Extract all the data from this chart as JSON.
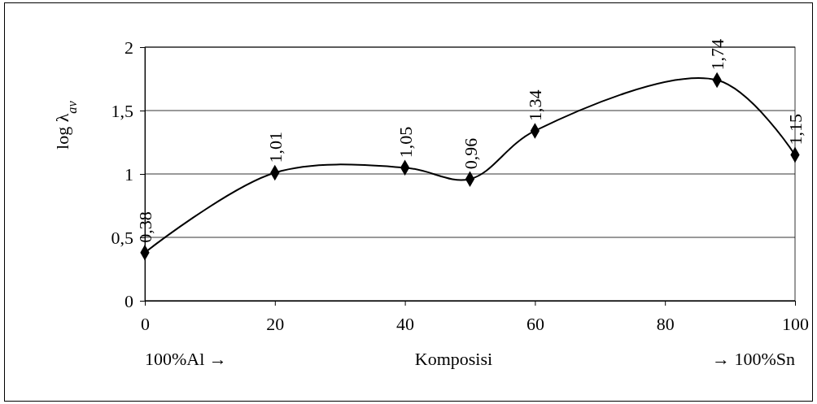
{
  "chart_data": {
    "type": "line",
    "xlabel": "Komposisi",
    "ylabel": "log λ$_{av}$",
    "x": [
      0,
      20,
      40,
      50,
      60,
      88,
      100
    ],
    "series": [
      {
        "color": "#000000",
        "values": [
          0.38,
          1.01,
          1.05,
          0.96,
          1.34,
          1.74,
          1.15
        ],
        "value_labels": [
          "0,38",
          "1,01",
          "1,05",
          "0,96",
          "1,34",
          "1,74",
          "1,15"
        ]
      }
    ],
    "xlim": [
      0,
      100
    ],
    "xticks": [
      0,
      20,
      40,
      60,
      80,
      100
    ],
    "ylim": [
      0,
      2
    ],
    "yticks": [
      0,
      {
        "value": 0.5,
        "label": "0,5"
      },
      1,
      {
        "value": 1.5,
        "label": "1,5"
      },
      2
    ],
    "grid": "y",
    "marker": "diamond",
    "line_style": "solid",
    "annotations": [
      "100%Al →",
      "→ 100%Sn"
    ]
  }
}
